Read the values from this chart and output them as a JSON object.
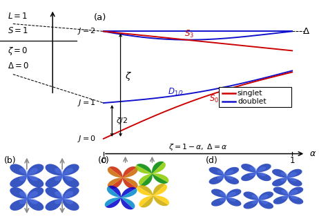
{
  "singlet_color": "#cc0000",
  "doublet_color": "#1111cc",
  "background": "#ffffff",
  "fig_left_labels": [
    "$L = 1$",
    "$S = 1$",
    "$\\zeta = 0$",
    "$\\Delta = 0$"
  ]
}
